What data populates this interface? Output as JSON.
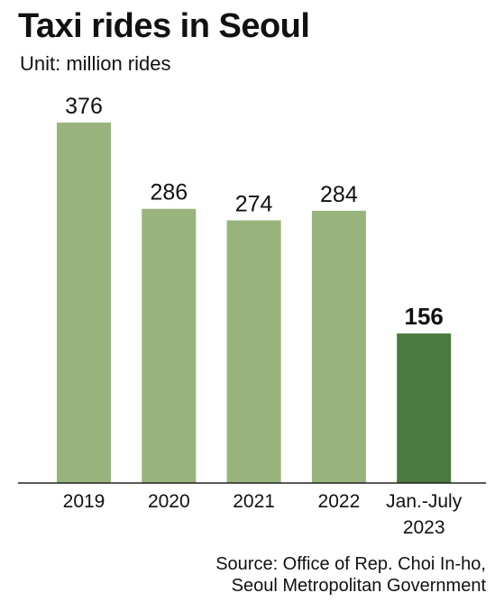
{
  "chart_data": {
    "type": "bar",
    "title": "Taxi rides in Seoul",
    "subtitle": "Unit: million rides",
    "categories": [
      {
        "line1": "2019",
        "line2": ""
      },
      {
        "line1": "2020",
        "line2": ""
      },
      {
        "line1": "2021",
        "line2": ""
      },
      {
        "line1": "2022",
        "line2": ""
      },
      {
        "line1": "Jan.-July",
        "line2": "2023"
      }
    ],
    "values": [
      376,
      286,
      274,
      284,
      156
    ],
    "highlight_index": 4,
    "colors": {
      "bar": "#98b47c",
      "highlight": "#4a7a40",
      "axis": "#222222",
      "text": "#111111"
    },
    "ylim": [
      0,
      400
    ],
    "grid": false,
    "xlabel": "",
    "ylabel": ""
  },
  "source": {
    "line1": "Source: Office of Rep. Choi In-ho,",
    "line2": "Seoul Metropolitan Government"
  }
}
